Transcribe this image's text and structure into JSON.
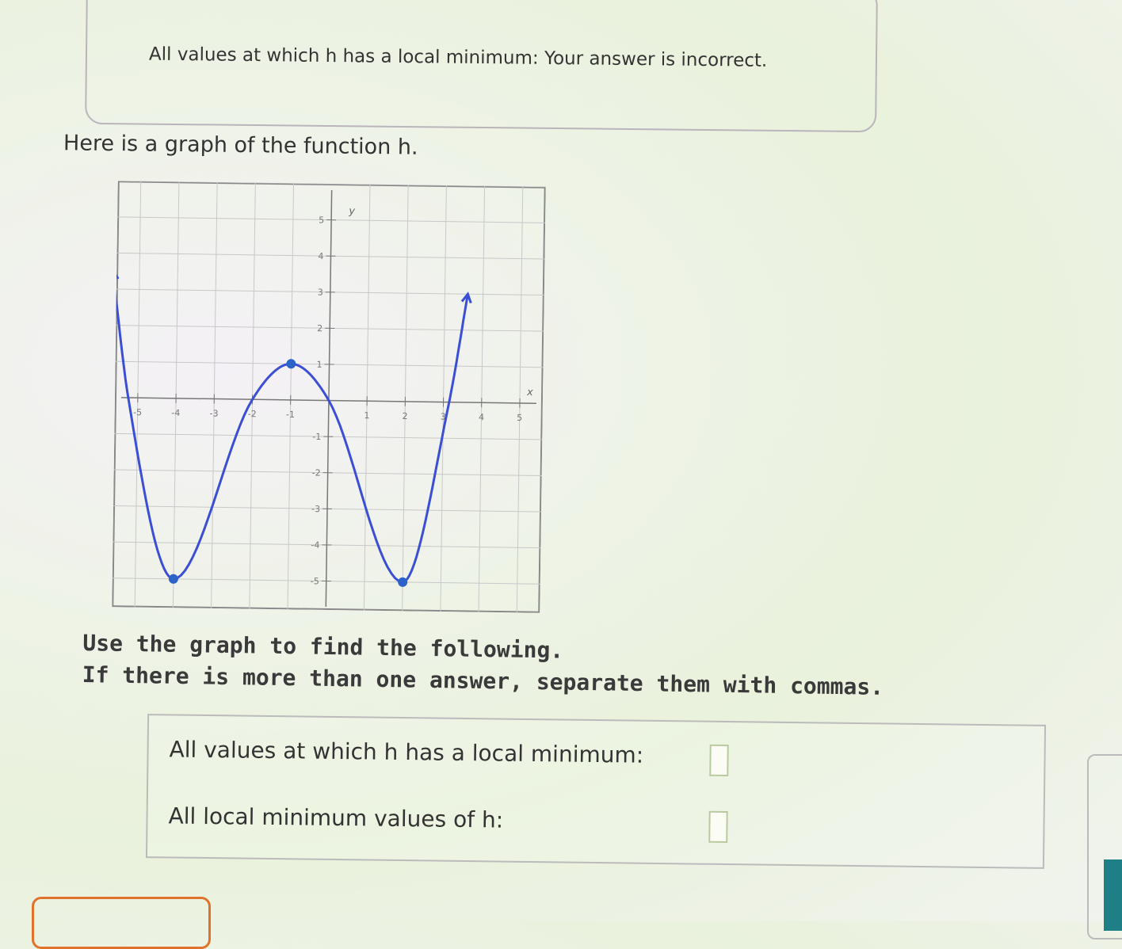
{
  "feedback": {
    "text": "All values at which h has a local minimum: Your answer is incorrect."
  },
  "intro": "Here is a graph of the function h.",
  "instructions": [
    "Use the graph to find the following.",
    "If there is more than one answer, separate them with commas."
  ],
  "questions": [
    {
      "label": "All values at which h has a local minimum:",
      "value": ""
    },
    {
      "label": "All local minimum values of h:",
      "value": ""
    }
  ],
  "chart_data": {
    "type": "line",
    "xlabel": "x",
    "ylabel": "y",
    "xlim": [
      -5.6,
      5.6
    ],
    "ylim": [
      -5.8,
      6
    ],
    "x_ticks": [
      -5,
      -4,
      -3,
      -2,
      -1,
      1,
      2,
      3,
      4,
      5
    ],
    "y_ticks": [
      -5,
      -4,
      -3,
      -2,
      -1,
      1,
      2,
      3,
      4,
      5
    ],
    "grid": true,
    "curve_points": [
      [
        -5.7,
        3.5
      ],
      [
        -5.25,
        0
      ],
      [
        -4,
        -5
      ],
      [
        -2,
        0
      ],
      [
        -1,
        1
      ],
      [
        0,
        0
      ],
      [
        2,
        -5
      ],
      [
        3.15,
        0
      ],
      [
        3.6,
        3
      ]
    ],
    "marked_points": [
      [
        -4,
        -5
      ],
      [
        -1,
        1
      ],
      [
        2,
        -5
      ]
    ],
    "end_arrows": true,
    "color": "#3b4fd6"
  }
}
